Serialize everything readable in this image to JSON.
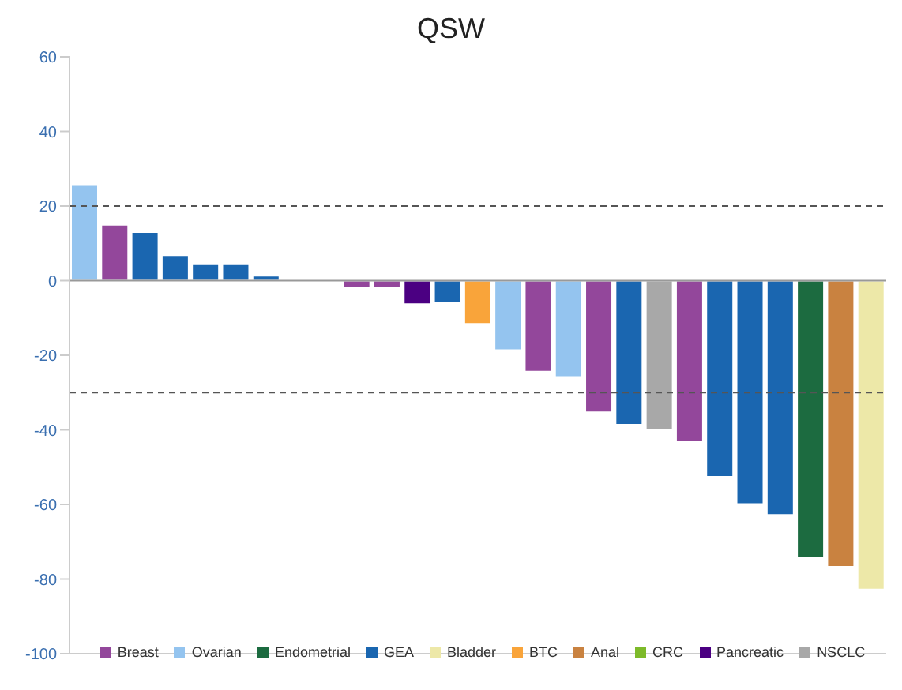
{
  "chart_data": {
    "type": "bar",
    "title": "QSW",
    "stacked": true,
    "categories": [
      null,
      null,
      null,
      null,
      null,
      null,
      null,
      null,
      null,
      null,
      null,
      null,
      null,
      null,
      null,
      null,
      null,
      null,
      null,
      null,
      null,
      null,
      null,
      null,
      null,
      null,
      null
    ],
    "series": [
      {
        "name": "Breast",
        "color": "#93479b",
        "values": [
          null,
          15,
          null,
          null,
          null,
          null,
          null,
          null,
          null,
          -2,
          -2,
          null,
          null,
          null,
          null,
          -24.4,
          null,
          -35.3,
          null,
          null,
          -43.3,
          null,
          null,
          null,
          null,
          null,
          null
        ]
      },
      {
        "name": "Ovarian",
        "color": "#94c4ef",
        "values": [
          25.8,
          null,
          null,
          null,
          null,
          null,
          null,
          null,
          null,
          null,
          null,
          null,
          null,
          null,
          -18.6,
          null,
          -25.8,
          null,
          null,
          null,
          null,
          null,
          null,
          null,
          null,
          null,
          null
        ]
      },
      {
        "name": "Endometrial",
        "color": "#1c6b40",
        "values": [
          null,
          null,
          null,
          null,
          null,
          null,
          null,
          null,
          null,
          null,
          null,
          null,
          null,
          null,
          null,
          null,
          null,
          null,
          null,
          null,
          null,
          null,
          null,
          null,
          -74.3,
          null,
          null
        ]
      },
      {
        "name": "GEA",
        "color": "#1a66b0",
        "values": [
          null,
          null,
          13,
          6.8,
          4.4,
          4.4,
          1.3,
          null,
          null,
          null,
          null,
          null,
          -6,
          null,
          null,
          null,
          null,
          null,
          -38.6,
          null,
          null,
          -52.6,
          -59.9,
          -62.8,
          null,
          null,
          null
        ]
      },
      {
        "name": "Bladder",
        "color": "#ede8a8",
        "values": [
          null,
          null,
          null,
          null,
          null,
          null,
          null,
          null,
          null,
          null,
          null,
          null,
          null,
          null,
          null,
          null,
          null,
          null,
          null,
          null,
          null,
          null,
          null,
          null,
          null,
          null,
          -82.8
        ]
      },
      {
        "name": "BTC",
        "color": "#f9a43a",
        "values": [
          null,
          null,
          null,
          null,
          null,
          null,
          null,
          null,
          null,
          null,
          null,
          null,
          null,
          -11.6,
          null,
          null,
          null,
          null,
          null,
          null,
          null,
          null,
          null,
          null,
          null,
          null,
          null
        ]
      },
      {
        "name": "Anal",
        "color": "#c98240",
        "values": [
          null,
          null,
          null,
          null,
          null,
          null,
          null,
          null,
          null,
          null,
          null,
          null,
          null,
          null,
          null,
          null,
          null,
          null,
          null,
          null,
          null,
          null,
          null,
          null,
          null,
          -76.7,
          null
        ]
      },
      {
        "name": "CRC",
        "color": "#7dba2a",
        "values": [
          null,
          null,
          null,
          null,
          null,
          null,
          null,
          null,
          null,
          null,
          null,
          null,
          null,
          null,
          null,
          null,
          null,
          null,
          null,
          null,
          null,
          null,
          null,
          null,
          null,
          null,
          null
        ]
      },
      {
        "name": "Pancreatic",
        "color": "#4b0082",
        "values": [
          null,
          null,
          null,
          null,
          null,
          null,
          null,
          null,
          null,
          null,
          null,
          -6.3,
          null,
          null,
          null,
          null,
          null,
          null,
          null,
          null,
          null,
          null,
          null,
          null,
          null,
          null,
          null
        ]
      },
      {
        "name": "NSCLC",
        "color": "#a8a8a8",
        "values": [
          null,
          null,
          null,
          null,
          null,
          null,
          null,
          null,
          null,
          null,
          null,
          null,
          null,
          null,
          null,
          null,
          null,
          null,
          null,
          -39.9,
          null,
          null,
          null,
          null,
          null,
          null,
          null
        ]
      }
    ],
    "ylim": [
      -100,
      60
    ],
    "yticks": [
      -100,
      -80,
      -60,
      -40,
      -20,
      0,
      20,
      40,
      60
    ],
    "ref_lines": [
      {
        "axis": "y",
        "value": 20,
        "line_style": "dashed",
        "color": "#555555"
      },
      {
        "axis": "y",
        "value": -30,
        "line_style": "dashed",
        "color": "#555555"
      }
    ],
    "legend": "bottom"
  }
}
